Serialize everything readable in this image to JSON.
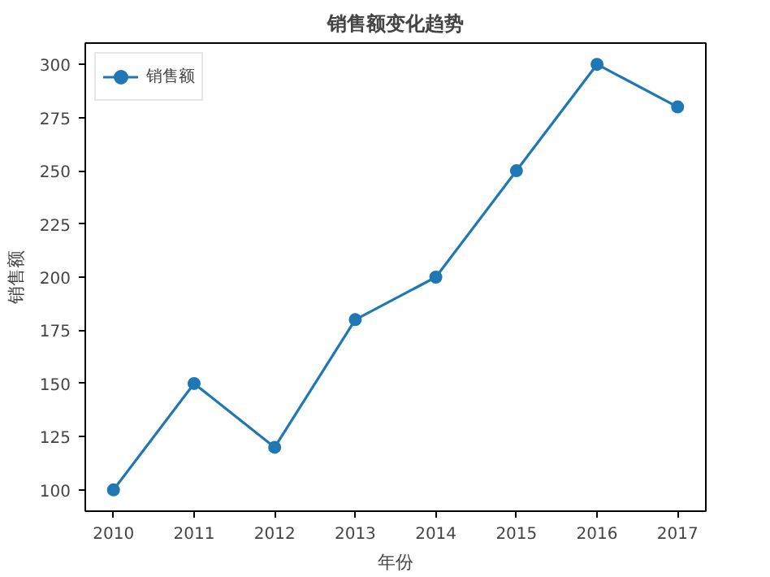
{
  "chart_data": {
    "type": "line",
    "title": "销售额变化趋势",
    "xlabel": "年份",
    "ylabel": "销售额",
    "x": [
      2010,
      2011,
      2012,
      2013,
      2014,
      2015,
      2016,
      2017
    ],
    "series": [
      {
        "name": "销售额",
        "color": "#1f77b4",
        "values": [
          100,
          150,
          120,
          180,
          200,
          250,
          300,
          280
        ]
      }
    ],
    "xlim": [
      2009.65,
      2017.35
    ],
    "ylim": [
      90,
      310
    ],
    "xticks": [
      2010,
      2011,
      2012,
      2013,
      2014,
      2015,
      2016,
      2017
    ],
    "yticks": [
      100,
      125,
      150,
      175,
      200,
      225,
      250,
      275,
      300
    ],
    "grid": false,
    "legend": "top left",
    "marker": "circle",
    "line_style": "solid"
  }
}
